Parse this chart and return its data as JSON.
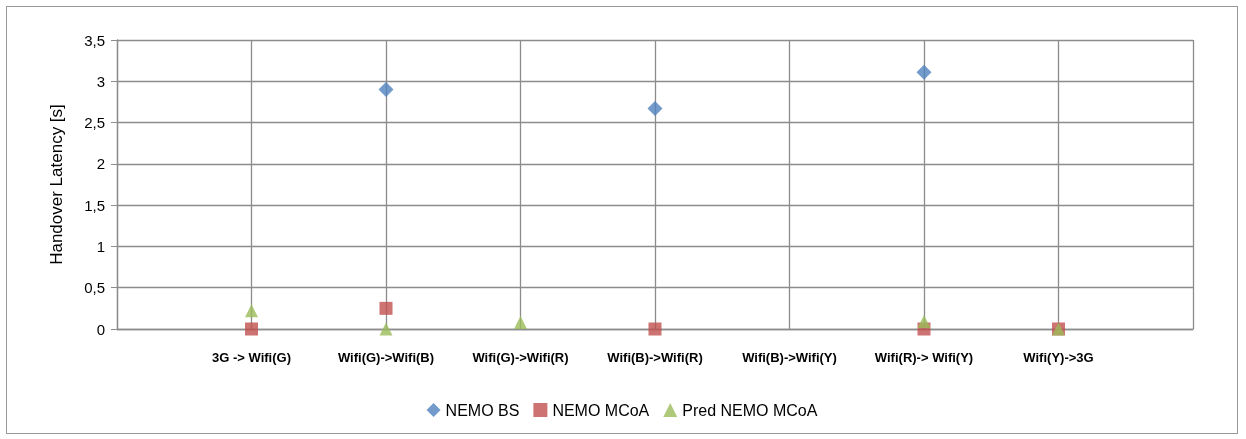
{
  "chart_data": {
    "type": "scatter",
    "ylabel": "Handover Latency [s]",
    "categories": [
      "3G -> Wifi(G)",
      "Wifi(G)->Wifi(B)",
      "Wifi(G)->Wifi(R)",
      "Wifi(B)->Wifi(R)",
      "Wifi(B)->Wifi(Y)",
      "Wifi(R)-> Wifi(Y)",
      "Wifi(Y)->3G"
    ],
    "series": [
      {
        "name": "NEMO BS",
        "color": "#4f81bd",
        "marker": "diamond",
        "values": [
          null,
          2.9,
          null,
          2.67,
          null,
          3.11,
          null
        ]
      },
      {
        "name": "NEMO MCoA",
        "color": "#c0504d",
        "marker": "square",
        "values": [
          0,
          0.25,
          null,
          0,
          null,
          0,
          0
        ]
      },
      {
        "name": "Pred NEMO MCoA",
        "color": "#9bbb59",
        "marker": "triangle",
        "values": [
          0.22,
          0,
          0.08,
          null,
          null,
          0.09,
          0
        ]
      }
    ],
    "ylim": [
      0,
      3.5
    ],
    "yticks": [
      0,
      {
        "value": 0.5,
        "label": "0,5"
      },
      1,
      {
        "value": 1.5,
        "label": "1,5"
      },
      2,
      {
        "value": 2.5,
        "label": "2,5"
      },
      3,
      {
        "value": 3.5,
        "label": "3,5"
      }
    ],
    "grid": true,
    "legend": "bottom"
  }
}
